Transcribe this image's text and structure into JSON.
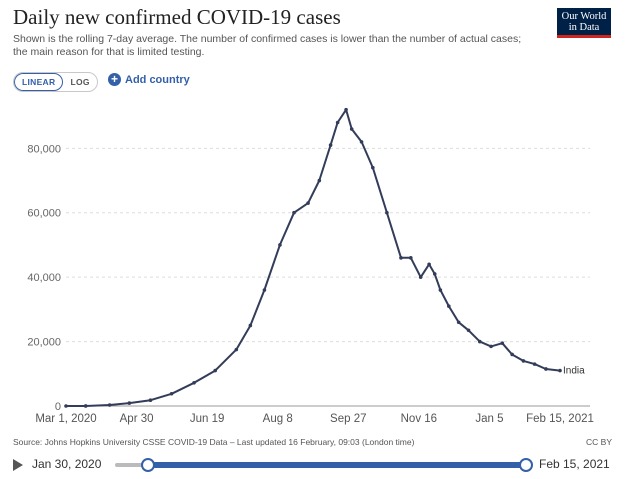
{
  "header": {
    "title": "Daily new confirmed COVID-19 cases",
    "subtitle": "Shown is the rolling 7-day average. The number of confirmed cases is lower than the number of actual cases; the main reason for that is limited testing.",
    "logo_line1": "Our World",
    "logo_line2": "in Data"
  },
  "controls": {
    "scale_linear": "LINEAR",
    "scale_log": "LOG",
    "add_country": "Add country"
  },
  "footer": {
    "source": "Source: Johns Hopkins University CSSE COVID-19 Data – Last updated 16 February, 09:03 (London time)",
    "license": "CC BY"
  },
  "timeline": {
    "start_label": "Jan 30, 2020",
    "end_label": "Feb 15, 2021"
  },
  "colors": {
    "line": "#333d5a",
    "accent": "#3360a9",
    "logo_bg": "#002147",
    "logo_stripe": "#ce261e"
  },
  "chart_data": {
    "type": "line",
    "title": "Daily new confirmed COVID-19 cases",
    "xlabel": "",
    "ylabel": "",
    "x_ticks": [
      "Mar 1, 2020",
      "Apr 30",
      "Jun 19",
      "Aug 8",
      "Sep 27",
      "Nov 16",
      "Jan 5",
      "Feb 15, 2021"
    ],
    "y_ticks": [
      "0",
      "20,000",
      "40,000",
      "60,000",
      "80,000"
    ],
    "ylim": [
      0,
      95000
    ],
    "grid": "horizontal dashed",
    "series": [
      {
        "name": "India",
        "x": [
          "2020-03-01",
          "2020-03-15",
          "2020-04-01",
          "2020-04-15",
          "2020-04-30",
          "2020-05-15",
          "2020-05-31",
          "2020-06-15",
          "2020-06-30",
          "2020-07-10",
          "2020-07-20",
          "2020-07-31",
          "2020-08-10",
          "2020-08-20",
          "2020-08-28",
          "2020-09-05",
          "2020-09-10",
          "2020-09-16",
          "2020-09-20",
          "2020-09-27",
          "2020-10-05",
          "2020-10-15",
          "2020-10-25",
          "2020-11-01",
          "2020-11-08",
          "2020-11-14",
          "2020-11-18",
          "2020-11-22",
          "2020-11-28",
          "2020-12-05",
          "2020-12-12",
          "2020-12-20",
          "2020-12-28",
          "2021-01-05",
          "2021-01-12",
          "2021-01-20",
          "2021-01-28",
          "2021-02-05",
          "2021-02-15"
        ],
        "values": [
          0,
          10,
          300,
          900,
          1800,
          3800,
          7200,
          11000,
          17500,
          25000,
          36000,
          50000,
          60000,
          63000,
          70000,
          81000,
          88000,
          92000,
          86000,
          82000,
          74000,
          60000,
          46000,
          46000,
          40000,
          44000,
          41000,
          36000,
          31000,
          26000,
          23500,
          20000,
          18500,
          19500,
          16000,
          14000,
          13000,
          11500,
          11000
        ]
      }
    ]
  }
}
